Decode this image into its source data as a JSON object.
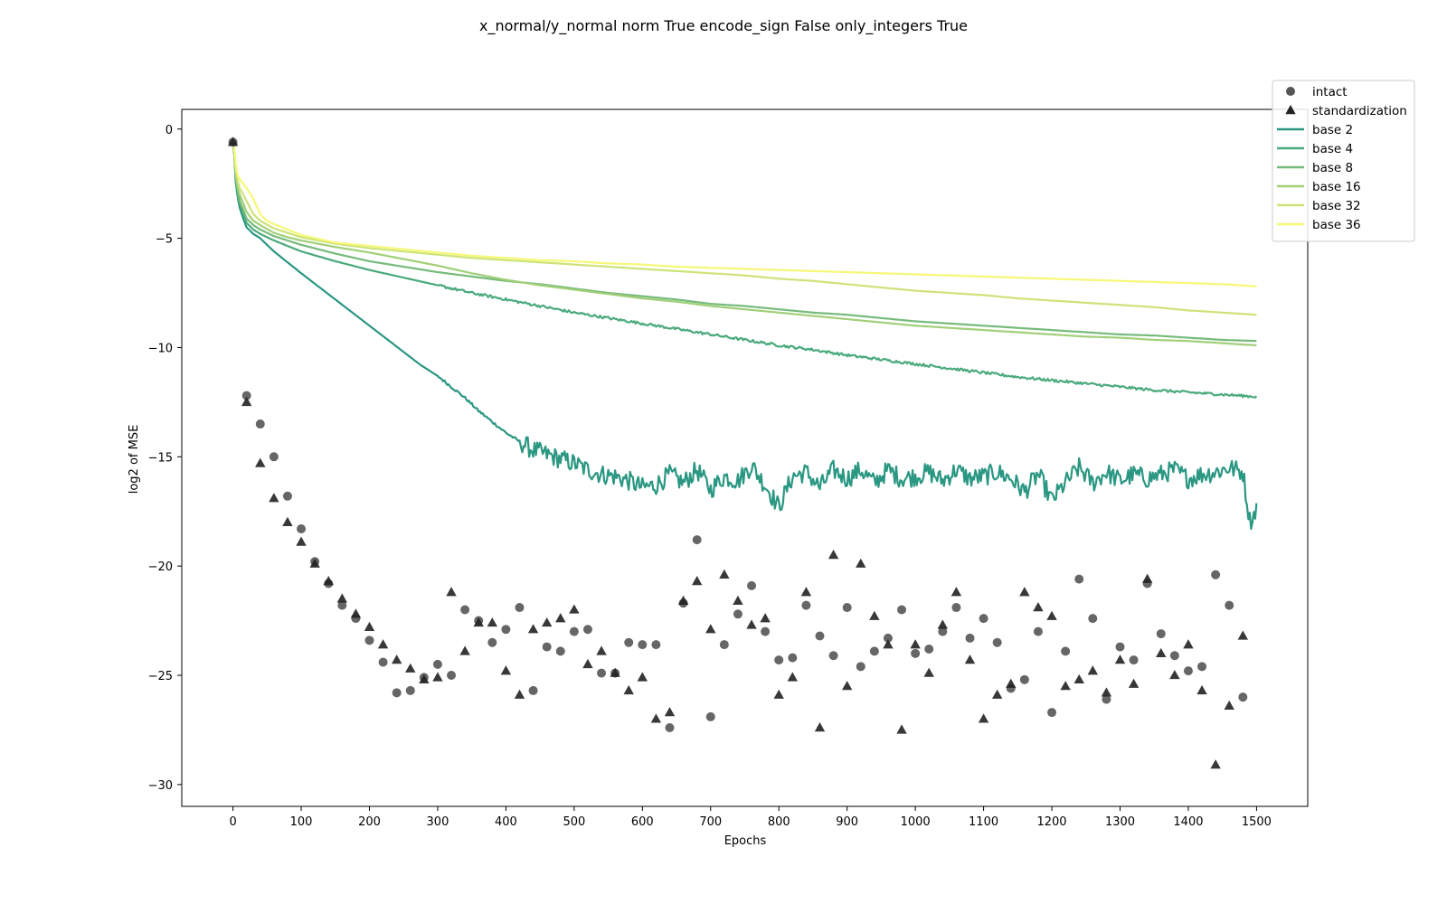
{
  "chart_data": {
    "type": "line",
    "title": "x_normal/y_normal norm True encode_sign False only_integers True",
    "xlabel": "Epochs",
    "ylabel": "log2 of MSE",
    "xlim": [
      -75,
      1575
    ],
    "ylim": [
      -31,
      0.9
    ],
    "xticks": [
      0,
      100,
      200,
      300,
      400,
      500,
      600,
      700,
      800,
      900,
      1000,
      1100,
      1200,
      1300,
      1400,
      1500
    ],
    "yticks": [
      0,
      -5,
      -10,
      -15,
      -20,
      -25,
      -30
    ],
    "legend_position": "outside-top-right",
    "grid": false,
    "line_series": [
      {
        "name": "base 2",
        "color": "#2a9782",
        "noisy": true,
        "x": [
          0,
          2,
          4,
          6,
          8,
          10,
          15,
          20,
          30,
          40,
          50,
          60,
          80,
          100,
          125,
          150,
          175,
          200,
          225,
          250,
          275,
          300,
          320,
          340,
          360,
          380,
          400,
          420,
          440,
          460,
          480,
          500,
          520,
          540,
          560,
          580,
          600,
          620,
          640,
          660,
          680,
          700,
          720,
          740,
          760,
          780,
          800,
          820,
          840,
          860,
          880,
          900,
          920,
          940,
          960,
          980,
          1000,
          1020,
          1040,
          1060,
          1080,
          1100,
          1120,
          1140,
          1160,
          1180,
          1200,
          1220,
          1240,
          1260,
          1280,
          1300,
          1320,
          1340,
          1360,
          1380,
          1400,
          1420,
          1440,
          1460,
          1480,
          1490,
          1495,
          1500
        ],
        "y": [
          -0.6,
          -1.2,
          -2.4,
          -2.9,
          -3.3,
          -3.6,
          -4.1,
          -4.5,
          -4.8,
          -5.0,
          -5.3,
          -5.6,
          -6.1,
          -6.6,
          -7.2,
          -7.8,
          -8.4,
          -9.0,
          -9.6,
          -10.2,
          -10.8,
          -11.3,
          -11.8,
          -12.3,
          -12.9,
          -13.4,
          -13.9,
          -14.3,
          -14.7,
          -14.9,
          -15.1,
          -15.3,
          -15.6,
          -15.8,
          -15.9,
          -16.1,
          -16.4,
          -16.3,
          -15.8,
          -16.2,
          -15.6,
          -16.5,
          -15.9,
          -16.1,
          -15.4,
          -16.3,
          -17.3,
          -15.9,
          -15.7,
          -16.4,
          -15.6,
          -16.0,
          -15.6,
          -16.2,
          -15.6,
          -16.0,
          -15.9,
          -15.7,
          -16.1,
          -15.6,
          -16.0,
          -15.9,
          -15.7,
          -16.0,
          -16.6,
          -15.8,
          -17.0,
          -16.2,
          -15.5,
          -16.2,
          -15.7,
          -16.1,
          -15.8,
          -16.0,
          -15.8,
          -15.6,
          -16.0,
          -15.8,
          -15.7,
          -15.5,
          -15.7,
          -17.9,
          -17.8,
          -17.2
        ]
      },
      {
        "name": "base 4",
        "color": "#4aaa7c",
        "noisy": true,
        "x": [
          0,
          2,
          4,
          6,
          8,
          10,
          15,
          20,
          30,
          40,
          60,
          80,
          100,
          150,
          200,
          250,
          300,
          350,
          400,
          450,
          500,
          550,
          600,
          650,
          700,
          750,
          800,
          850,
          900,
          950,
          1000,
          1050,
          1100,
          1150,
          1200,
          1250,
          1300,
          1350,
          1400,
          1450,
          1500
        ],
        "y": [
          -0.6,
          -1.2,
          -2.2,
          -2.7,
          -3.1,
          -3.4,
          -3.9,
          -4.3,
          -4.6,
          -4.8,
          -5.1,
          -5.35,
          -5.6,
          -6.05,
          -6.45,
          -6.8,
          -7.15,
          -7.5,
          -7.8,
          -8.1,
          -8.4,
          -8.65,
          -8.9,
          -9.15,
          -9.4,
          -9.65,
          -9.9,
          -10.1,
          -10.35,
          -10.55,
          -10.75,
          -10.95,
          -11.15,
          -11.35,
          -11.5,
          -11.65,
          -11.8,
          -11.95,
          -12.05,
          -12.15,
          -12.25
        ]
      },
      {
        "name": "base 8",
        "color": "#76bb7b",
        "noisy": false,
        "x": [
          0,
          2,
          4,
          6,
          8,
          10,
          15,
          20,
          30,
          40,
          60,
          80,
          100,
          150,
          200,
          250,
          300,
          350,
          400,
          450,
          500,
          550,
          600,
          650,
          700,
          750,
          800,
          850,
          900,
          950,
          1000,
          1050,
          1100,
          1150,
          1200,
          1250,
          1300,
          1350,
          1400,
          1450,
          1500
        ],
        "y": [
          -0.6,
          -1.2,
          -2.1,
          -2.6,
          -3.0,
          -3.3,
          -3.7,
          -4.1,
          -4.4,
          -4.6,
          -4.9,
          -5.1,
          -5.3,
          -5.7,
          -6.05,
          -6.3,
          -6.55,
          -6.75,
          -6.95,
          -7.1,
          -7.3,
          -7.5,
          -7.65,
          -7.8,
          -8.0,
          -8.1,
          -8.25,
          -8.4,
          -8.5,
          -8.65,
          -8.8,
          -8.9,
          -9.0,
          -9.1,
          -9.2,
          -9.3,
          -9.4,
          -9.45,
          -9.55,
          -9.65,
          -9.7
        ]
      },
      {
        "name": "base 16",
        "color": "#a1cf78",
        "noisy": false,
        "x": [
          0,
          2,
          4,
          6,
          8,
          10,
          15,
          20,
          30,
          40,
          60,
          80,
          100,
          150,
          200,
          250,
          300,
          350,
          400,
          450,
          500,
          550,
          600,
          650,
          700,
          750,
          800,
          850,
          900,
          950,
          1000,
          1050,
          1100,
          1150,
          1200,
          1250,
          1300,
          1350,
          1400,
          1450,
          1500
        ],
        "y": [
          -0.6,
          -1.1,
          -2.0,
          -2.5,
          -2.8,
          -3.0,
          -3.4,
          -3.8,
          -4.2,
          -4.4,
          -4.75,
          -4.95,
          -5.1,
          -5.4,
          -5.65,
          -5.95,
          -6.25,
          -6.6,
          -6.9,
          -7.15,
          -7.35,
          -7.55,
          -7.75,
          -7.9,
          -8.1,
          -8.25,
          -8.4,
          -8.55,
          -8.7,
          -8.85,
          -9.0,
          -9.1,
          -9.2,
          -9.3,
          -9.4,
          -9.5,
          -9.55,
          -9.65,
          -9.7,
          -9.8,
          -9.9
        ]
      },
      {
        "name": "base 32",
        "color": "#cde378",
        "noisy": false,
        "x": [
          0,
          2,
          4,
          6,
          8,
          10,
          15,
          20,
          30,
          40,
          60,
          80,
          100,
          150,
          200,
          250,
          300,
          350,
          400,
          450,
          500,
          550,
          600,
          650,
          700,
          750,
          800,
          850,
          900,
          950,
          1000,
          1050,
          1100,
          1150,
          1200,
          1250,
          1300,
          1350,
          1400,
          1450,
          1500
        ],
        "y": [
          -0.6,
          -1.0,
          -1.8,
          -2.2,
          -2.5,
          -2.7,
          -3.0,
          -3.3,
          -3.9,
          -4.2,
          -4.55,
          -4.75,
          -4.95,
          -5.25,
          -5.45,
          -5.6,
          -5.75,
          -5.9,
          -6.0,
          -6.1,
          -6.2,
          -6.3,
          -6.4,
          -6.5,
          -6.6,
          -6.7,
          -6.85,
          -6.95,
          -7.1,
          -7.25,
          -7.4,
          -7.5,
          -7.6,
          -7.75,
          -7.85,
          -7.95,
          -8.05,
          -8.15,
          -8.3,
          -8.4,
          -8.5
        ]
      },
      {
        "name": "base 36",
        "color": "#f6f877",
        "noisy": false,
        "x": [
          0,
          2,
          4,
          6,
          8,
          10,
          15,
          20,
          30,
          40,
          50,
          60,
          80,
          100,
          150,
          200,
          250,
          300,
          350,
          400,
          450,
          500,
          550,
          600,
          650,
          700,
          750,
          800,
          850,
          900,
          950,
          1000,
          1050,
          1100,
          1150,
          1200,
          1250,
          1300,
          1350,
          1400,
          1450,
          1500
        ],
        "y": [
          -0.6,
          -0.9,
          -1.6,
          -2.0,
          -2.2,
          -2.3,
          -2.5,
          -2.7,
          -3.2,
          -3.9,
          -4.2,
          -4.35,
          -4.6,
          -4.85,
          -5.2,
          -5.35,
          -5.5,
          -5.65,
          -5.8,
          -5.9,
          -6.0,
          -6.05,
          -6.15,
          -6.2,
          -6.3,
          -6.35,
          -6.4,
          -6.45,
          -6.5,
          -6.55,
          -6.6,
          -6.65,
          -6.7,
          -6.75,
          -6.8,
          -6.85,
          -6.9,
          -6.95,
          -7.0,
          -7.05,
          -7.1,
          -7.2
        ]
      }
    ],
    "scatter_series": [
      {
        "name": "intact",
        "marker": "circle",
        "color": "#555555",
        "x": [
          0,
          20,
          40,
          60,
          80,
          100,
          120,
          140,
          160,
          180,
          200,
          220,
          240,
          260,
          280,
          300,
          320,
          340,
          360,
          380,
          400,
          420,
          440,
          460,
          480,
          500,
          520,
          540,
          560,
          580,
          600,
          620,
          640,
          660,
          680,
          700,
          720,
          740,
          760,
          780,
          800,
          820,
          840,
          860,
          880,
          900,
          920,
          940,
          960,
          980,
          1000,
          1020,
          1040,
          1060,
          1080,
          1100,
          1120,
          1140,
          1160,
          1180,
          1200,
          1220,
          1240,
          1260,
          1280,
          1300,
          1320,
          1340,
          1360,
          1380,
          1400,
          1420,
          1440,
          1460,
          1480
        ],
        "y": [
          -0.6,
          -12.2,
          -13.5,
          -15.0,
          -16.8,
          -18.3,
          -19.8,
          -20.8,
          -21.8,
          -22.4,
          -23.4,
          -24.4,
          -25.8,
          -25.7,
          -25.1,
          -24.5,
          -25.0,
          -22.0,
          -22.5,
          -23.5,
          -22.9,
          -21.9,
          -25.7,
          -23.7,
          -23.9,
          -23.0,
          -22.9,
          -24.9,
          -24.9,
          -23.5,
          -23.6,
          -23.6,
          -27.4,
          -21.7,
          -18.8,
          -26.9,
          -23.6,
          -22.2,
          -20.9,
          -23.0,
          -24.3,
          -24.2,
          -21.8,
          -23.2,
          -24.1,
          -21.9,
          -24.6,
          -23.9,
          -23.3,
          -22.0,
          -24.0,
          -23.8,
          -23.0,
          -21.9,
          -23.3,
          -22.4,
          -23.5,
          -25.6,
          -25.2,
          -23.0,
          -26.7,
          -23.9,
          -20.6,
          -22.4,
          -26.1,
          -23.7,
          -24.3,
          -20.8,
          -23.1,
          -24.1,
          -24.8,
          -24.6,
          -20.4,
          -21.8,
          -26.0
        ]
      },
      {
        "name": "standardization",
        "marker": "triangle",
        "color": "#222222",
        "x": [
          0,
          20,
          40,
          60,
          80,
          100,
          120,
          140,
          160,
          180,
          200,
          220,
          240,
          260,
          280,
          300,
          320,
          340,
          360,
          380,
          400,
          420,
          440,
          460,
          480,
          500,
          520,
          540,
          560,
          580,
          600,
          620,
          640,
          660,
          680,
          700,
          720,
          740,
          760,
          780,
          800,
          820,
          840,
          860,
          880,
          900,
          920,
          940,
          960,
          980,
          1000,
          1020,
          1040,
          1060,
          1080,
          1100,
          1120,
          1140,
          1160,
          1180,
          1200,
          1220,
          1240,
          1260,
          1280,
          1300,
          1320,
          1340,
          1360,
          1380,
          1400,
          1420,
          1440,
          1460,
          1480
        ],
        "y": [
          -0.6,
          -12.5,
          -15.3,
          -16.9,
          -18.0,
          -18.9,
          -19.9,
          -20.7,
          -21.5,
          -22.2,
          -22.8,
          -23.6,
          -24.3,
          -24.7,
          -25.2,
          -25.1,
          -21.2,
          -23.9,
          -22.6,
          -22.6,
          -24.8,
          -25.9,
          -22.9,
          -22.6,
          -22.4,
          -22.0,
          -24.5,
          -23.9,
          -24.9,
          -25.7,
          -25.1,
          -27.0,
          -26.7,
          -21.6,
          -20.7,
          -22.9,
          -20.4,
          -21.6,
          -22.7,
          -22.4,
          -25.9,
          -25.1,
          -21.2,
          -27.4,
          -19.5,
          -25.5,
          -19.9,
          -22.3,
          -23.6,
          -27.5,
          -23.6,
          -24.9,
          -22.7,
          -21.2,
          -24.3,
          -27.0,
          -25.9,
          -25.4,
          -21.2,
          -21.9,
          -22.3,
          -25.5,
          -25.2,
          -24.8,
          -25.8,
          -24.3,
          -25.4,
          -20.6,
          -24.0,
          -25.0,
          -23.6,
          -25.7,
          -29.1,
          -26.4,
          -23.2
        ]
      }
    ],
    "legend": [
      "intact",
      "standardization",
      "base 2",
      "base 4",
      "base 8",
      "base 16",
      "base 32",
      "base 36"
    ]
  }
}
